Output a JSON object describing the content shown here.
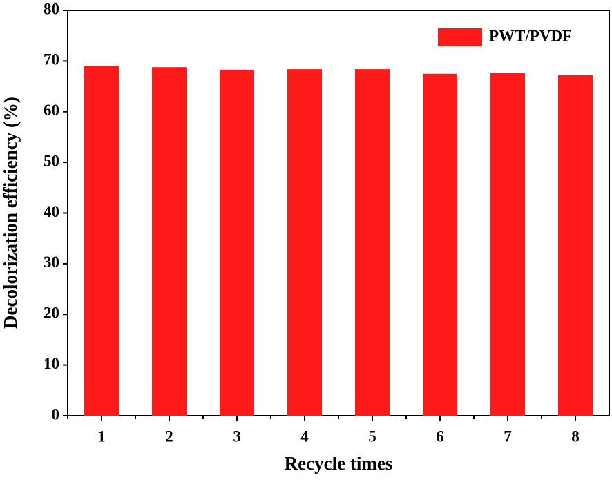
{
  "chart_data": {
    "type": "bar",
    "x_label": "Recycle times",
    "y_label": "Decolorization efficiency (%)",
    "categories": [
      "1",
      "2",
      "3",
      "4",
      "5",
      "6",
      "7",
      "8"
    ],
    "series": [
      {
        "name": "PWT/PVDF",
        "color": "#ff1a1a",
        "values": [
          69.1,
          68.8,
          68.3,
          68.4,
          68.4,
          67.5,
          67.7,
          67.2
        ]
      }
    ],
    "ylim": [
      0,
      80
    ],
    "yticks": [
      0,
      10,
      20,
      30,
      40,
      50,
      60,
      70,
      80
    ],
    "grid": false,
    "legend": "upper right"
  }
}
